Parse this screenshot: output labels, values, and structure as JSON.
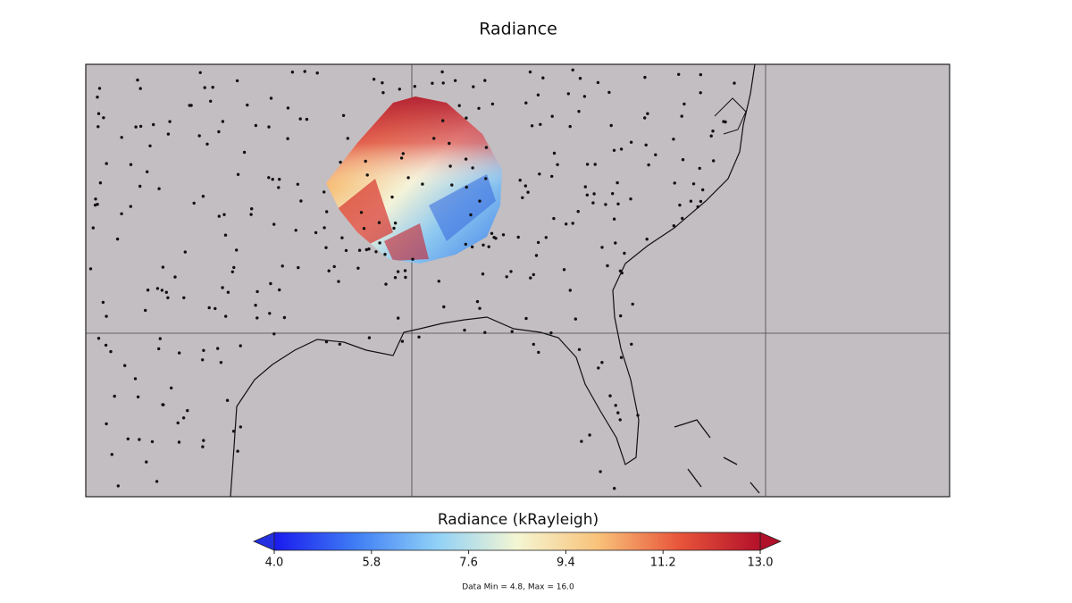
{
  "title": "Radiance",
  "colorbar": {
    "label": "Radiance (kRayleigh)",
    "lim": [
      4.0,
      13.0
    ],
    "ticks": [
      {
        "value": 4.0,
        "label": "4.0"
      },
      {
        "value": 5.8,
        "label": "5.8"
      },
      {
        "value": 7.6,
        "label": "7.6"
      },
      {
        "value": 9.4,
        "label": "9.4"
      },
      {
        "value": 11.2,
        "label": "11.2"
      },
      {
        "value": 13.0,
        "label": "13.0"
      }
    ],
    "colors": [
      "#1a1aee",
      "#3f7df5",
      "#8fd0f7",
      "#f4f6d2",
      "#f9c27a",
      "#e8553a",
      "#b3102a"
    ],
    "under_color": "#2230e0",
    "over_color": "#b0102a"
  },
  "note": "Data Min = 4.8, Max = 16.0"
}
